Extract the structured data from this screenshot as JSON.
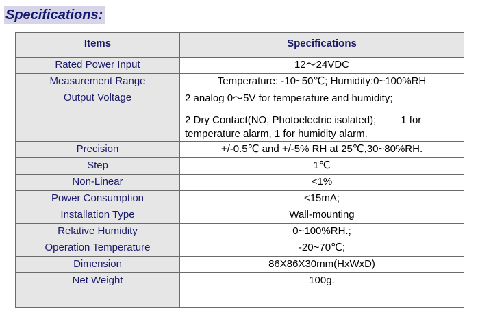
{
  "page_title": "Specifications:",
  "table": {
    "header": {
      "items": "Items",
      "specifications": "Specifications"
    },
    "rows": [
      {
        "item": "Rated Power Input",
        "value": "12～24VDC"
      },
      {
        "item": "Measurement Range",
        "value": "Temperature: -10~50℃; Humidity:0~100%RH"
      },
      {
        "item": "Output Voltage",
        "value_line1": "2 analog 0～5V for temperature and humidity;",
        "value_line2a": "2 Dry Contact(NO, Photoelectric isolated);",
        "value_line2b": "1 for",
        "value_line3": "temperature alarm, 1 for humidity alarm."
      },
      {
        "item": "Precision",
        "value": "+/-0.5℃ and +/-5% RH at 25℃,30~80%RH."
      },
      {
        "item": "Step",
        "value": "1℃"
      },
      {
        "item": "Non-Linear",
        "value": "<1%"
      },
      {
        "item": "Power Consumption",
        "value": "<15mA;"
      },
      {
        "item": "Installation Type",
        "value": "Wall-mounting"
      },
      {
        "item": "Relative Humidity",
        "value": "0~100%RH.;"
      },
      {
        "item": "Operation Temperature",
        "value": "-20~70℃;"
      },
      {
        "item": "Dimension",
        "value": "86X86X30mm(HxWxD)"
      },
      {
        "item": "Net Weight",
        "value": "100g."
      }
    ]
  }
}
